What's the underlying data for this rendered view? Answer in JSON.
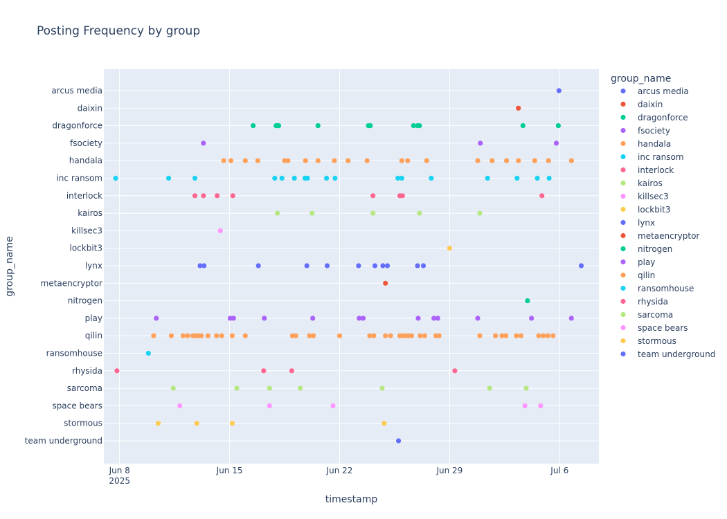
{
  "chart_data": {
    "type": "scatter",
    "title": "Posting Frequency by group",
    "xlabel": "timestamp",
    "ylabel": "group_name",
    "x_range": [
      "2025-06-07T00:00",
      "2025-07-08T12:00"
    ],
    "x_ticks": [
      {
        "date": "2025-06-08",
        "label": "Jun 8",
        "sublabel": "2025"
      },
      {
        "date": "2025-06-15",
        "label": "Jun 15",
        "sublabel": ""
      },
      {
        "date": "2025-06-22",
        "label": "Jun 22",
        "sublabel": ""
      },
      {
        "date": "2025-06-29",
        "label": "Jun 29",
        "sublabel": ""
      },
      {
        "date": "2025-07-06",
        "label": "Jul 6",
        "sublabel": ""
      }
    ],
    "categories": [
      "arcus media",
      "daixin",
      "dragonforce",
      "fsociety",
      "handala",
      "inc ransom",
      "interlock",
      "kairos",
      "killsec3",
      "lockbit3",
      "lynx",
      "metaencryptor",
      "nitrogen",
      "play",
      "qilin",
      "ransomhouse",
      "rhysida",
      "sarcoma",
      "space bears",
      "stormous",
      "team underground"
    ],
    "legend": {
      "title": "group_name",
      "position": "right"
    },
    "grid": true,
    "series": [
      {
        "name": "arcus media",
        "color": "#636efa",
        "x": [
          "2025-07-05T23:00"
        ]
      },
      {
        "name": "daixin",
        "color": "#EF553B",
        "x": [
          "2025-07-03T09:00"
        ]
      },
      {
        "name": "dragonforce",
        "color": "#00cc96",
        "x": [
          "2025-06-16T12:00",
          "2025-06-17T23:00",
          "2025-06-18T01:00",
          "2025-06-18T03:00",
          "2025-06-20T15:00",
          "2025-06-23T20:00",
          "2025-06-23T23:00",
          "2025-06-26T17:00",
          "2025-06-26T23:00",
          "2025-06-27T02:00",
          "2025-07-03T16:00",
          "2025-07-05T22:00"
        ]
      },
      {
        "name": "fsociety",
        "color": "#ab63fa",
        "x": [
          "2025-06-13T08:00",
          "2025-06-30T23:00",
          "2025-07-05T19:00"
        ]
      },
      {
        "name": "handala",
        "color": "#FFA15A",
        "x": [
          "2025-06-14T15:00",
          "2025-06-15T02:00",
          "2025-06-16T00:00",
          "2025-06-16T19:00",
          "2025-06-18T12:00",
          "2025-06-18T17:00",
          "2025-06-19T20:00",
          "2025-06-20T15:00",
          "2025-06-21T16:00",
          "2025-06-22T13:00",
          "2025-06-23T18:00",
          "2025-06-25T23:00",
          "2025-06-26T08:00",
          "2025-06-27T13:00",
          "2025-06-30T19:00",
          "2025-07-01T17:00",
          "2025-07-02T15:00",
          "2025-07-03T09:00",
          "2025-07-04T10:00",
          "2025-07-05T07:00",
          "2025-07-06T18:00"
        ]
      },
      {
        "name": "inc ransom",
        "color": "#19d3f3",
        "x": [
          "2025-06-07T18:00",
          "2025-06-11T03:00",
          "2025-06-12T19:00",
          "2025-06-17T21:00",
          "2025-06-18T08:00",
          "2025-06-19T03:00",
          "2025-06-19T19:00",
          "2025-06-19T23:00",
          "2025-06-21T04:00",
          "2025-06-21T17:00",
          "2025-06-25T17:00",
          "2025-06-25T23:00",
          "2025-06-27T20:00",
          "2025-07-01T10:00",
          "2025-07-03T07:00",
          "2025-07-04T14:00",
          "2025-07-05T08:00"
        ]
      },
      {
        "name": "interlock",
        "color": "#FF6692",
        "x": [
          "2025-06-12T19:00",
          "2025-06-13T08:00",
          "2025-06-14T05:00",
          "2025-06-15T05:00",
          "2025-06-24T03:00",
          "2025-06-25T20:00",
          "2025-06-26T00:00",
          "2025-07-04T21:00"
        ]
      },
      {
        "name": "kairos",
        "color": "#B6E880",
        "x": [
          "2025-06-18T01:00",
          "2025-06-20T06:00",
          "2025-06-24T03:00",
          "2025-06-27T02:00",
          "2025-06-30T22:00"
        ]
      },
      {
        "name": "killsec3",
        "color": "#FF97FF",
        "x": [
          "2025-06-14T10:00"
        ]
      },
      {
        "name": "lockbit3",
        "color": "#FECB52",
        "x": [
          "2025-06-29T00:00"
        ]
      },
      {
        "name": "lynx",
        "color": "#636efa",
        "x": [
          "2025-06-13T03:00",
          "2025-06-13T09:00",
          "2025-06-16T20:00",
          "2025-06-19T22:00",
          "2025-06-21T05:00",
          "2025-06-23T05:00",
          "2025-06-24T06:00",
          "2025-06-24T18:00",
          "2025-06-25T01:00",
          "2025-06-26T23:00",
          "2025-06-27T08:00",
          "2025-07-07T09:00"
        ]
      },
      {
        "name": "metaencryptor",
        "color": "#EF553B",
        "x": [
          "2025-06-24T22:00"
        ]
      },
      {
        "name": "nitrogen",
        "color": "#00cc96",
        "x": [
          "2025-07-03T23:00"
        ]
      },
      {
        "name": "play",
        "color": "#ab63fa",
        "x": [
          "2025-06-10T08:00",
          "2025-06-15T01:00",
          "2025-06-15T06:00",
          "2025-06-17T05:00",
          "2025-06-20T07:00",
          "2025-06-23T06:00",
          "2025-06-23T12:00",
          "2025-06-27T00:00",
          "2025-06-28T00:00",
          "2025-06-28T06:00",
          "2025-06-30T19:00",
          "2025-07-04T05:00",
          "2025-07-06T18:00"
        ]
      },
      {
        "name": "qilin",
        "color": "#FFA15A",
        "x": [
          "2025-06-10T04:00",
          "2025-06-11T07:00",
          "2025-06-12T01:00",
          "2025-06-12T08:00",
          "2025-06-12T16:00",
          "2025-06-12T20:00",
          "2025-06-13T00:00",
          "2025-06-13T05:00",
          "2025-06-13T15:00",
          "2025-06-14T04:00",
          "2025-06-14T12:00",
          "2025-06-15T04:00",
          "2025-06-16T00:00",
          "2025-06-19T00:00",
          "2025-06-19T05:00",
          "2025-06-20T02:00",
          "2025-06-20T08:00",
          "2025-06-22T00:00",
          "2025-06-23T22:00",
          "2025-06-24T04:00",
          "2025-06-24T22:00",
          "2025-06-25T06:00",
          "2025-06-25T20:00",
          "2025-06-26T00:00",
          "2025-06-26T05:00",
          "2025-06-26T09:00",
          "2025-06-26T14:00",
          "2025-06-27T03:00",
          "2025-06-27T10:00",
          "2025-06-28T03:00",
          "2025-06-28T08:00",
          "2025-06-30T22:00",
          "2025-07-01T22:00",
          "2025-07-02T08:00",
          "2025-07-02T14:00",
          "2025-07-03T06:00",
          "2025-07-03T13:00",
          "2025-07-04T16:00",
          "2025-07-04T23:00",
          "2025-07-05T06:00",
          "2025-07-05T14:00"
        ]
      },
      {
        "name": "ransomhouse",
        "color": "#19d3f3",
        "x": [
          "2025-06-09T20:00"
        ]
      },
      {
        "name": "rhysida",
        "color": "#FF6692",
        "x": [
          "2025-06-07T20:00",
          "2025-06-17T04:00",
          "2025-06-18T23:00",
          "2025-06-29T08:00"
        ]
      },
      {
        "name": "sarcoma",
        "color": "#B6E880",
        "x": [
          "2025-06-11T10:00",
          "2025-06-15T11:00",
          "2025-06-17T13:00",
          "2025-06-19T12:00",
          "2025-06-24T17:00",
          "2025-07-01T13:00",
          "2025-07-03T21:00"
        ]
      },
      {
        "name": "space bears",
        "color": "#FF97FF",
        "x": [
          "2025-06-11T20:00",
          "2025-06-17T13:00",
          "2025-06-21T14:00",
          "2025-07-03T19:00",
          "2025-07-04T19:00"
        ]
      },
      {
        "name": "stormous",
        "color": "#FECB52",
        "x": [
          "2025-06-10T11:00",
          "2025-06-12T22:00",
          "2025-06-15T04:00",
          "2025-06-24T20:00"
        ]
      },
      {
        "name": "team underground",
        "color": "#636efa",
        "x": [
          "2025-06-25T18:00"
        ]
      }
    ]
  }
}
